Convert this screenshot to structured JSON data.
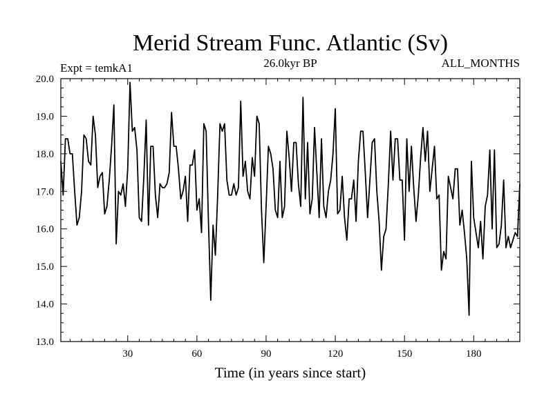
{
  "chart_data": {
    "type": "line",
    "title": "Merid Stream Func. Atlantic (Sv)",
    "subtitle_left": "Expt = temkA1",
    "subtitle_center": "26.0kyr BP",
    "subtitle_right": "ALL_MONTHS",
    "xlabel": "Time (in years since start)",
    "ylabel": "",
    "xlim": [
      1,
      200
    ],
    "ylim": [
      13.0,
      20.0
    ],
    "x_ticks": [
      30,
      60,
      90,
      120,
      150,
      180
    ],
    "x_tick_labels": [
      "30",
      "60",
      "90",
      "120",
      "150",
      "180"
    ],
    "y_ticks": [
      13,
      14,
      15,
      16,
      17,
      18,
      19,
      20
    ],
    "y_tick_labels": [
      "13.0",
      "14.0",
      "15.0",
      "16.0",
      "17.0",
      "18.0",
      "19.0",
      "20.0"
    ],
    "series": [
      {
        "name": "Merid Stream Func. Atlantic",
        "color": "#000000",
        "x_start": 1,
        "x_step": 1,
        "values": [
          17.8,
          16.9,
          18.4,
          18.4,
          18.0,
          18.0,
          17.0,
          16.1,
          16.3,
          17.0,
          18.5,
          18.4,
          17.8,
          17.7,
          19.0,
          18.5,
          17.1,
          17.4,
          17.5,
          16.4,
          16.6,
          17.3,
          18.2,
          19.3,
          15.6,
          17.0,
          16.9,
          17.2,
          16.6,
          17.6,
          19.9,
          18.6,
          18.7,
          18.1,
          16.3,
          16.2,
          17.4,
          18.9,
          16.1,
          18.2,
          18.2,
          16.9,
          16.3,
          17.2,
          17.1,
          17.1,
          17.2,
          17.5,
          19.1,
          18.2,
          18.2,
          17.6,
          16.8,
          17.0,
          17.4,
          16.2,
          17.7,
          17.7,
          18.1,
          16.5,
          16.8,
          15.9,
          18.8,
          18.6,
          16.2,
          14.1,
          16.1,
          15.3,
          16.9,
          18.8,
          18.6,
          18.8,
          17.3,
          16.9,
          16.9,
          17.2,
          16.9,
          17.1,
          19.4,
          17.4,
          17.8,
          17.0,
          16.8,
          17.9,
          17.4,
          19.0,
          18.8,
          16.5,
          15.1,
          16.6,
          18.2,
          18.0,
          17.6,
          16.5,
          16.3,
          17.8,
          16.3,
          16.6,
          18.6,
          17.9,
          17.0,
          18.3,
          18.3,
          17.2,
          16.6,
          19.5,
          16.8,
          18.3,
          16.4,
          16.8,
          18.7,
          17.5,
          16.3,
          18.4,
          16.6,
          16.3,
          17.0,
          17.3,
          18.0,
          19.2,
          16.4,
          16.5,
          17.4,
          16.3,
          15.7,
          16.8,
          16.8,
          17.3,
          16.2,
          17.8,
          18.6,
          18.6,
          17.5,
          16.3,
          17.3,
          18.3,
          18.4,
          17.0,
          16.2,
          14.9,
          15.8,
          16.0,
          17.2,
          18.6,
          17.3,
          18.4,
          18.4,
          17.3,
          17.3,
          15.7,
          18.4,
          17.0,
          18.2,
          17.1,
          16.2,
          16.9,
          17.9,
          18.7,
          17.8,
          18.6,
          17.0,
          17.6,
          18.2,
          16.8,
          16.9,
          14.9,
          15.4,
          15.2,
          17.4,
          17.1,
          16.8,
          17.6,
          17.6,
          16.1,
          16.5,
          15.9,
          15.2,
          13.7,
          17.8,
          16.3,
          15.9,
          15.5,
          16.2,
          15.2,
          16.6,
          16.9,
          18.1,
          16.0,
          18.1,
          15.5,
          15.6,
          16.1,
          17.3,
          15.5,
          15.8,
          15.5,
          15.7,
          15.9,
          15.8,
          17.2
        ]
      }
    ]
  }
}
